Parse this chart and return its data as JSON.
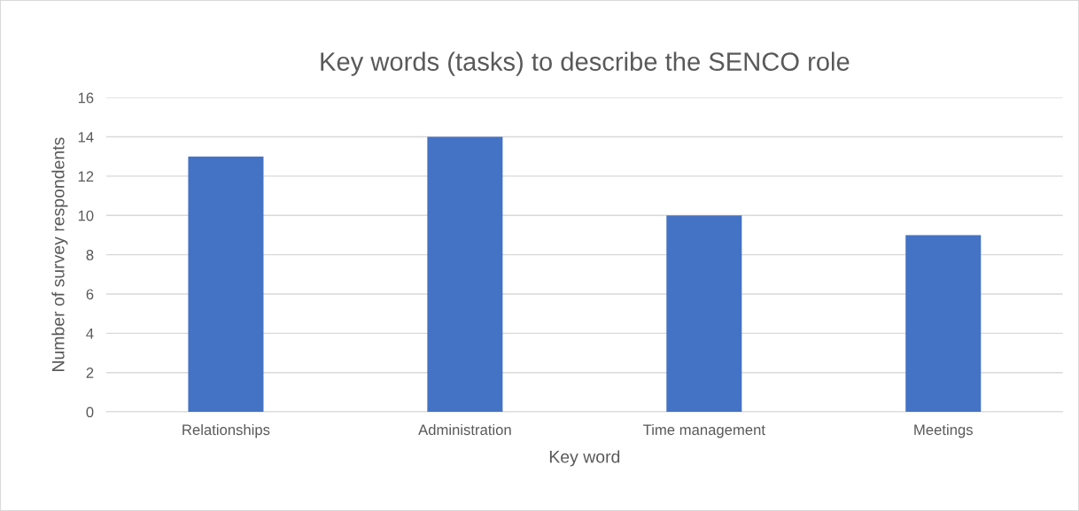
{
  "chart_data": {
    "type": "bar",
    "title": "Key words (tasks) to describe the SENCO role",
    "xlabel": "Key word",
    "ylabel": "Number of survey respondents",
    "categories": [
      "Relationships",
      "Administration",
      "Time management",
      "Meetings"
    ],
    "values": [
      13,
      14,
      10,
      9
    ],
    "color": "#4472c4",
    "ylim": [
      0,
      16
    ],
    "yticks": [
      0,
      2,
      4,
      6,
      8,
      10,
      12,
      14,
      16
    ],
    "grid": "y"
  }
}
